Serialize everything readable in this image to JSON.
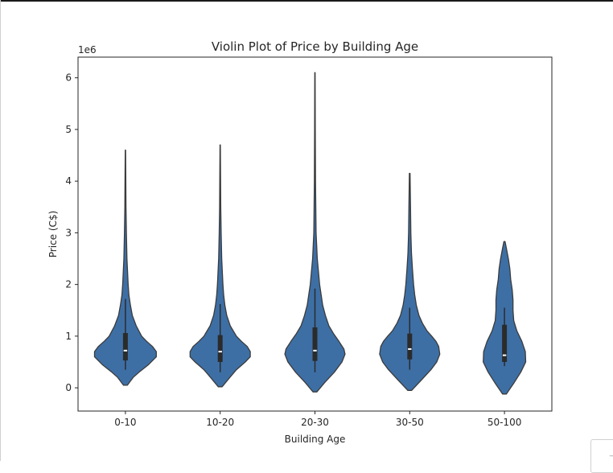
{
  "chart_data": {
    "type": "violin",
    "title": "Violin Plot of Price by Building Age",
    "xlabel": "Building Age",
    "ylabel": "Price (C$)",
    "y_offset_label": "1e6",
    "ylim": [
      -0.45,
      6.4
    ],
    "yticks": [
      0,
      1,
      2,
      3,
      4,
      5,
      6
    ],
    "categories": [
      "0-10",
      "10-20",
      "20-30",
      "30-50",
      "50-100"
    ],
    "color": "#3d6fa5",
    "edge_color": "#3b3b3b",
    "series": [
      {
        "category": "0-10",
        "density": [
          [
            0.05,
            0.05
          ],
          [
            0.2,
            0.2
          ],
          [
            0.3,
            0.35
          ],
          [
            0.45,
            0.6
          ],
          [
            0.6,
            0.8
          ],
          [
            0.7,
            0.8
          ],
          [
            0.8,
            0.7
          ],
          [
            0.9,
            0.55
          ],
          [
            1.0,
            0.42
          ],
          [
            1.2,
            0.28
          ],
          [
            1.4,
            0.18
          ],
          [
            1.6,
            0.13
          ],
          [
            1.8,
            0.09
          ],
          [
            2.0,
            0.07
          ],
          [
            2.5,
            0.04
          ],
          [
            3.0,
            0.025
          ],
          [
            3.5,
            0.015
          ],
          [
            4.0,
            0.01
          ],
          [
            4.6,
            0.005
          ]
        ],
        "min": 0.05,
        "max": 4.6,
        "q1": 0.53,
        "median": 0.72,
        "q3": 1.06,
        "whisker_low": 0.35,
        "whisker_high": 1.72
      },
      {
        "category": "10-20",
        "density": [
          [
            0.02,
            0.05
          ],
          [
            0.2,
            0.25
          ],
          [
            0.35,
            0.42
          ],
          [
            0.5,
            0.65
          ],
          [
            0.6,
            0.78
          ],
          [
            0.7,
            0.78
          ],
          [
            0.8,
            0.7
          ],
          [
            0.9,
            0.55
          ],
          [
            1.0,
            0.42
          ],
          [
            1.2,
            0.26
          ],
          [
            1.4,
            0.17
          ],
          [
            1.6,
            0.12
          ],
          [
            1.8,
            0.09
          ],
          [
            2.0,
            0.07
          ],
          [
            2.5,
            0.04
          ],
          [
            3.0,
            0.025
          ],
          [
            3.5,
            0.015
          ],
          [
            4.0,
            0.01
          ],
          [
            4.7,
            0.005
          ]
        ],
        "min": 0.02,
        "max": 4.7,
        "q1": 0.5,
        "median": 0.7,
        "q3": 1.02,
        "whisker_low": 0.3,
        "whisker_high": 1.62
      },
      {
        "category": "20-30",
        "density": [
          [
            -0.08,
            0.05
          ],
          [
            0.1,
            0.25
          ],
          [
            0.3,
            0.5
          ],
          [
            0.5,
            0.7
          ],
          [
            0.65,
            0.78
          ],
          [
            0.75,
            0.75
          ],
          [
            0.9,
            0.62
          ],
          [
            1.05,
            0.48
          ],
          [
            1.2,
            0.36
          ],
          [
            1.4,
            0.27
          ],
          [
            1.6,
            0.2
          ],
          [
            1.8,
            0.16
          ],
          [
            2.0,
            0.12
          ],
          [
            2.5,
            0.06
          ],
          [
            3.0,
            0.03
          ],
          [
            4.0,
            0.015
          ],
          [
            5.0,
            0.008
          ],
          [
            6.1,
            0.004
          ]
        ],
        "min": -0.08,
        "max": 6.1,
        "q1": 0.52,
        "median": 0.72,
        "q3": 1.17,
        "whisker_low": 0.3,
        "whisker_high": 1.92
      },
      {
        "category": "30-50",
        "density": [
          [
            -0.05,
            0.05
          ],
          [
            0.15,
            0.3
          ],
          [
            0.35,
            0.55
          ],
          [
            0.5,
            0.7
          ],
          [
            0.65,
            0.78
          ],
          [
            0.8,
            0.75
          ],
          [
            0.9,
            0.68
          ],
          [
            1.0,
            0.57
          ],
          [
            1.1,
            0.45
          ],
          [
            1.25,
            0.33
          ],
          [
            1.4,
            0.24
          ],
          [
            1.6,
            0.17
          ],
          [
            1.8,
            0.13
          ],
          [
            2.0,
            0.1
          ],
          [
            2.3,
            0.07
          ],
          [
            2.6,
            0.045
          ],
          [
            3.0,
            0.03
          ],
          [
            3.5,
            0.02
          ],
          [
            4.15,
            0.008
          ]
        ],
        "min": -0.05,
        "max": 4.15,
        "q1": 0.55,
        "median": 0.75,
        "q3": 1.05,
        "whisker_low": 0.35,
        "whisker_high": 1.55
      },
      {
        "category": "50-100",
        "density": [
          [
            -0.12,
            0.05
          ],
          [
            0.1,
            0.25
          ],
          [
            0.3,
            0.42
          ],
          [
            0.5,
            0.55
          ],
          [
            0.7,
            0.54
          ],
          [
            0.9,
            0.45
          ],
          [
            1.1,
            0.32
          ],
          [
            1.3,
            0.24
          ],
          [
            1.5,
            0.22
          ],
          [
            1.7,
            0.22
          ],
          [
            1.9,
            0.2
          ],
          [
            2.1,
            0.16
          ],
          [
            2.3,
            0.14
          ],
          [
            2.5,
            0.1
          ],
          [
            2.7,
            0.05
          ],
          [
            2.83,
            0.015
          ]
        ],
        "min": -0.12,
        "max": 2.83,
        "q1": 0.5,
        "median": 0.63,
        "q3": 1.22,
        "whisker_low": 0.42,
        "whisker_high": 1.55
      }
    ]
  }
}
